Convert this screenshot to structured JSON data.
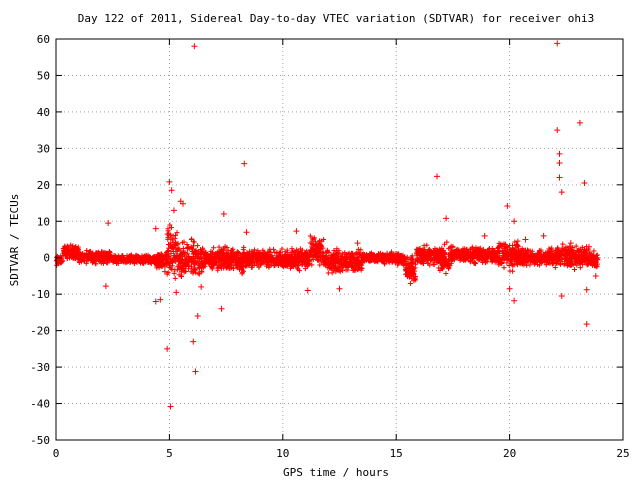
{
  "chart_data": {
    "type": "scatter",
    "title": "Day 122 of 2011, Sidereal Day-to-day VTEC variation (SDTVAR) for receiver ohi3",
    "xlabel": "GPS time / hours",
    "ylabel": "SDTVAR / TECUs",
    "xlim": [
      0,
      25
    ],
    "ylim": [
      -50,
      60
    ],
    "xticks": [
      0,
      5,
      10,
      15,
      20,
      25
    ],
    "yticks": [
      -50,
      -40,
      -30,
      -20,
      -10,
      0,
      10,
      20,
      30,
      40,
      50,
      60
    ],
    "grid": true,
    "legend": "none",
    "marker": "plus",
    "color": "#ff0000",
    "series": [
      {
        "outliers": [
          [
            2.2,
            -7.8
          ],
          [
            2.3,
            9.5
          ],
          [
            4.4,
            8.0
          ],
          [
            4.4,
            -12.0
          ],
          [
            4.6,
            -11.5
          ],
          [
            4.8,
            -3.8
          ],
          [
            4.9,
            -25.0
          ],
          [
            5.0,
            20.8
          ],
          [
            5.05,
            -40.8
          ],
          [
            5.1,
            18.5
          ],
          [
            5.2,
            13.0
          ],
          [
            5.3,
            -9.5
          ],
          [
            5.5,
            15.5
          ],
          [
            5.6,
            14.8
          ],
          [
            6.05,
            -23.0
          ],
          [
            6.1,
            58.0
          ],
          [
            6.15,
            -31.2
          ],
          [
            6.25,
            -16.0
          ],
          [
            6.4,
            -8.0
          ],
          [
            7.3,
            -14.0
          ],
          [
            7.4,
            12.0
          ],
          [
            8.3,
            25.8
          ],
          [
            8.4,
            7.0
          ],
          [
            10.6,
            7.3
          ],
          [
            11.1,
            -9.0
          ],
          [
            12.5,
            -8.5
          ],
          [
            13.3,
            4.0
          ],
          [
            16.8,
            22.3
          ],
          [
            17.2,
            10.8
          ],
          [
            18.9,
            6.0
          ],
          [
            19.9,
            14.2
          ],
          [
            20.0,
            -8.5
          ],
          [
            20.2,
            10.0
          ],
          [
            20.2,
            -11.8
          ],
          [
            20.7,
            5.0
          ],
          [
            21.5,
            6.0
          ],
          [
            22.1,
            58.8
          ],
          [
            22.1,
            35.0
          ],
          [
            22.2,
            28.5
          ],
          [
            22.2,
            26.0
          ],
          [
            22.2,
            22.0
          ],
          [
            22.3,
            18.0
          ],
          [
            22.3,
            -10.5
          ],
          [
            22.7,
            4.0
          ],
          [
            23.1,
            37.0
          ],
          [
            23.3,
            20.5
          ],
          [
            23.4,
            -18.2
          ],
          [
            23.4,
            -8.8
          ],
          [
            23.5,
            3.0
          ],
          [
            23.8,
            -5.0
          ]
        ],
        "bands": [
          {
            "x": [
              0.0,
              0.3
            ],
            "y": [
              -2.5,
              1.0
            ]
          },
          {
            "x": [
              0.3,
              1.0
            ],
            "y": [
              -1.0,
              4.0
            ]
          },
          {
            "x": [
              1.0,
              2.4
            ],
            "y": [
              -2.0,
              2.5
            ]
          },
          {
            "x": [
              2.4,
              4.4
            ],
            "y": [
              -2.0,
              1.0
            ]
          },
          {
            "x": [
              4.4,
              4.9
            ],
            "y": [
              -4.0,
              2.5
            ]
          },
          {
            "x": [
              4.9,
              5.4
            ],
            "y": [
              -9.0,
              12.0
            ]
          },
          {
            "x": [
              5.4,
              6.5
            ],
            "y": [
              -7.0,
              6.0
            ]
          },
          {
            "x": [
              6.5,
              8.5
            ],
            "y": [
              -5.0,
              4.0
            ]
          },
          {
            "x": [
              8.5,
              10.0
            ],
            "y": [
              -3.5,
              3.0
            ]
          },
          {
            "x": [
              10.0,
              11.2
            ],
            "y": [
              -4.0,
              3.5
            ]
          },
          {
            "x": [
              11.2,
              11.8
            ],
            "y": [
              -3.5,
              7.0
            ]
          },
          {
            "x": [
              11.8,
              13.5
            ],
            "y": [
              -5.0,
              3.0
            ]
          },
          {
            "x": [
              13.5,
              15.0
            ],
            "y": [
              -2.0,
              2.0
            ]
          },
          {
            "x": [
              15.0,
              15.4
            ],
            "y": [
              -3.0,
              2.0
            ]
          },
          {
            "x": [
              15.4,
              15.9
            ],
            "y": [
              -8.0,
              2.0
            ]
          },
          {
            "x": [
              15.9,
              16.8
            ],
            "y": [
              -3.0,
              4.0
            ]
          },
          {
            "x": [
              16.8,
              17.4
            ],
            "y": [
              -6.0,
              5.0
            ]
          },
          {
            "x": [
              17.4,
              19.5
            ],
            "y": [
              -2.0,
              3.5
            ]
          },
          {
            "x": [
              19.5,
              20.4
            ],
            "y": [
              -4.0,
              5.5
            ]
          },
          {
            "x": [
              20.4,
              22.0
            ],
            "y": [
              -3.0,
              3.0
            ]
          },
          {
            "x": [
              22.0,
              23.4
            ],
            "y": [
              -4.0,
              5.0
            ]
          },
          {
            "x": [
              23.4,
              23.9
            ],
            "y": [
              -3.5,
              2.5
            ]
          }
        ]
      }
    ]
  }
}
